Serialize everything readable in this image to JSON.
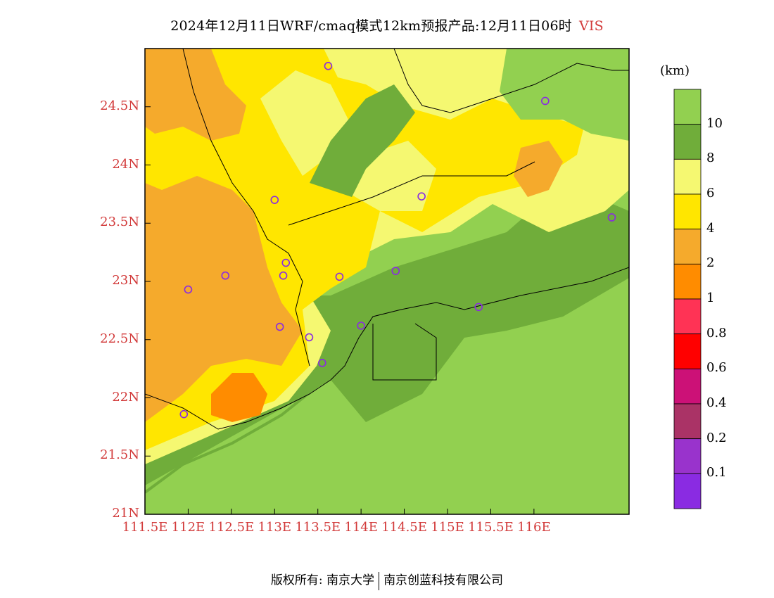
{
  "title": {
    "main": "2024年12月11日WRF/cmaq模式12km预报产品:12月11日06时",
    "variable": "VIS"
  },
  "map": {
    "lat_labels": [
      "24.5N",
      "24N",
      "23.5N",
      "23N",
      "22.5N",
      "22N",
      "21.5N",
      "21N"
    ],
    "lat_values": [
      24.5,
      24,
      23.5,
      23,
      22.5,
      22,
      21.5,
      21
    ],
    "lon_labels": [
      "111.5E",
      "112E",
      "112.5E",
      "113E",
      "113.5E",
      "114E",
      "114.5E",
      "115E",
      "115.5E",
      "116E"
    ],
    "lon_values": [
      111.5,
      112,
      112.5,
      113,
      113.5,
      114,
      114.5,
      115,
      115.5,
      116
    ],
    "lon_range": [
      111.5,
      117.1
    ],
    "lat_range": [
      21.0,
      25.0
    ],
    "stations": [
      {
        "lon": 113.62,
        "lat": 24.85
      },
      {
        "lon": 116.13,
        "lat": 24.55
      },
      {
        "lon": 113.0,
        "lat": 23.7
      },
      {
        "lon": 114.7,
        "lat": 23.73
      },
      {
        "lon": 116.9,
        "lat": 23.55
      },
      {
        "lon": 113.13,
        "lat": 23.16
      },
      {
        "lon": 113.1,
        "lat": 23.05
      },
      {
        "lon": 112.43,
        "lat": 23.05
      },
      {
        "lon": 112.0,
        "lat": 22.93
      },
      {
        "lon": 113.75,
        "lat": 23.04
      },
      {
        "lon": 114.4,
        "lat": 23.09
      },
      {
        "lon": 115.36,
        "lat": 22.78
      },
      {
        "lon": 113.06,
        "lat": 22.61
      },
      {
        "lon": 114.0,
        "lat": 22.62
      },
      {
        "lon": 113.4,
        "lat": 22.52
      },
      {
        "lon": 113.55,
        "lat": 22.3
      },
      {
        "lon": 111.95,
        "lat": 21.86
      }
    ],
    "station_color": "#8a2be2"
  },
  "legend": {
    "unit": "(km)",
    "colors": [
      "#92d050",
      "#70ad3a",
      "#f5f871",
      "#ffe600",
      "#f5aa2c",
      "#ff8c00",
      "#ff3355",
      "#ff0000",
      "#cc1177",
      "#aa3366",
      "#9933cc",
      "#8a2be2"
    ],
    "labels": [
      "10",
      "8",
      "6",
      "4",
      "2",
      "1",
      "0.8",
      "0.6",
      "0.4",
      "0.2",
      "0.1"
    ]
  },
  "footer": {
    "left": "版权所有: 南京大学",
    "right": "南京创蓝科技有限公司"
  }
}
